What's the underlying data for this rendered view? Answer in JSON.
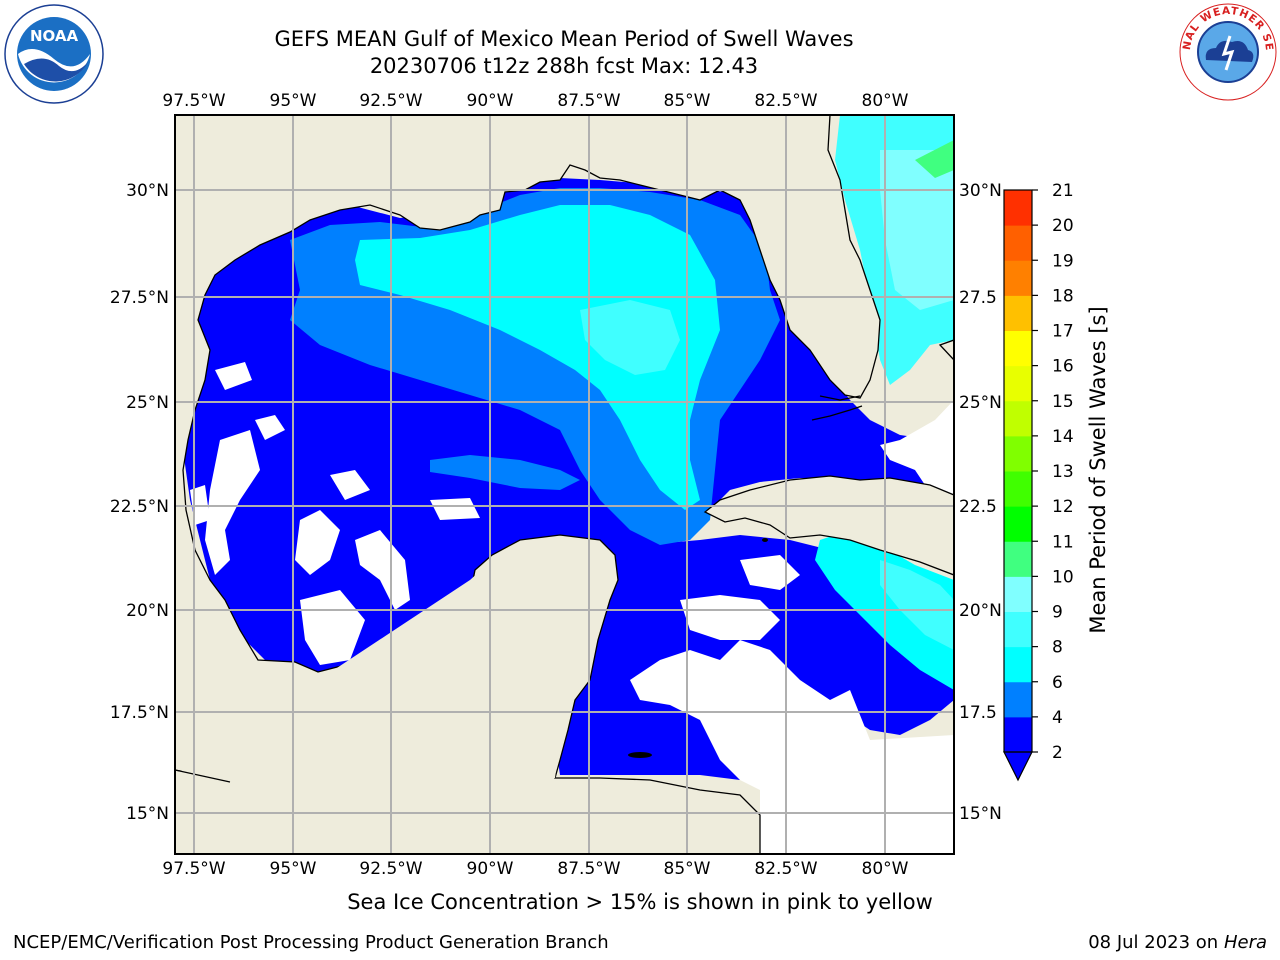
{
  "header": {
    "title_line1": "GEFS MEAN Gulf of Mexico Mean Period of Swell Waves",
    "title_line2": "20230706 t12z 288h fcst   Max: 12.43"
  },
  "logos": {
    "left": {
      "name": "NOAA",
      "ring_text": "NATIONAL OCEANIC AND ATMOSPHERIC ADMINISTRATION · U.S. DEPARTMENT OF COMMERCE"
    },
    "right": {
      "name": "NATIONAL WEATHER SERVICE"
    }
  },
  "map": {
    "lon_ticks": [
      "97.5°W",
      "95°W",
      "92.5°W",
      "90°W",
      "87.5°W",
      "85°W",
      "82.5°W",
      "80°W"
    ],
    "lat_ticks_left": [
      "30°N",
      "27.5°N",
      "25°N",
      "22.5°N",
      "20°N",
      "17.5°N",
      "15°N"
    ],
    "lat_ticks_right": [
      "30°N",
      "27.5",
      "25°N",
      "22.5",
      "20°N",
      "17.5",
      "15°N"
    ],
    "colors": {
      "land": "#eeecdc",
      "gridline": "#b0b0b0",
      "coast": "#000000"
    }
  },
  "colorbar": {
    "label": "Mean Period of Swell Waves [s]",
    "tick_labels": [
      "2",
      "4",
      "6",
      "8",
      "9",
      "10",
      "11",
      "12",
      "13",
      "14",
      "15",
      "16",
      "17",
      "18",
      "19",
      "20",
      "21"
    ],
    "colors": [
      "#0000ff",
      "#0080ff",
      "#00ffff",
      "#40ffff",
      "#80ffff",
      "#40ff80",
      "#00ff00",
      "#40ff00",
      "#80ff00",
      "#c0ff00",
      "#e8ff00",
      "#ffff00",
      "#ffc000",
      "#ff8000",
      "#ff6000",
      "#ff3000",
      "#ff0000"
    ],
    "underflow_color": "#0000ff"
  },
  "footer": {
    "ice_note": "Sea Ice Concentration > 15% is shown in pink to yellow",
    "credit": "NCEP/EMC/Verification Post Processing Product Generation Branch",
    "date": "08 Jul 2023 on ",
    "host": "Hera"
  }
}
